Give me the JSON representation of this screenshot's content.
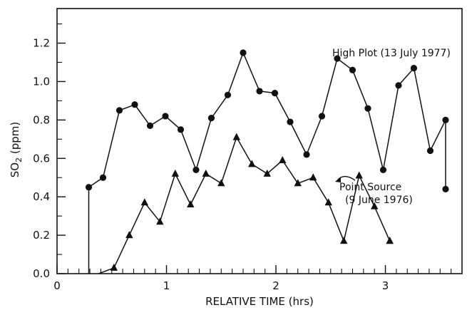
{
  "chart_data": {
    "type": "line",
    "xlabel": "RELATIVE TIME (hrs)",
    "ylabel_main": "SO",
    "ylabel_sub": "2",
    "ylabel_unit": " (ppm)",
    "xlim": [
      0,
      3.7
    ],
    "ylim": [
      0,
      1.38
    ],
    "xticks": [
      0,
      1,
      2,
      3
    ],
    "yticks": [
      0.0,
      0.2,
      0.4,
      0.6,
      0.8,
      1.0,
      1.2
    ],
    "ytick_labels": [
      "0.0",
      "0.2",
      "0.4",
      "0.6",
      "0.8",
      "1.0",
      "1.2"
    ],
    "grid": false,
    "series": [
      {
        "name": "High Plot (13 July 1977)",
        "marker": "circle",
        "x": [
          0.29,
          0.29,
          0.42,
          0.57,
          0.71,
          0.85,
          0.99,
          1.13,
          1.27,
          1.41,
          1.56,
          1.7,
          1.85,
          1.99,
          2.13,
          2.28,
          2.42,
          2.56,
          2.7,
          2.84,
          2.98,
          3.12,
          3.26,
          3.41,
          3.55,
          3.55
        ],
        "y": [
          0.0,
          0.45,
          0.5,
          0.85,
          0.88,
          0.77,
          0.82,
          0.75,
          0.54,
          0.81,
          0.93,
          1.15,
          0.95,
          0.94,
          0.79,
          0.62,
          0.82,
          1.12,
          1.06,
          0.86,
          0.54,
          0.98,
          1.07,
          0.64,
          0.8,
          0.44
        ]
      },
      {
        "name": "Point Source (9 June 1976)",
        "marker": "triangle",
        "x": [
          0.38,
          0.52,
          0.66,
          0.8,
          0.94,
          1.08,
          1.22,
          1.36,
          1.5,
          1.64,
          1.78,
          1.92,
          2.06,
          2.2,
          2.34,
          2.48,
          2.62,
          2.76,
          2.9,
          3.04,
          3.04
        ],
        "y": [
          0.0,
          0.03,
          0.2,
          0.37,
          0.27,
          0.52,
          0.36,
          0.52,
          0.47,
          0.71,
          0.57,
          0.52,
          0.59,
          0.47,
          0.5,
          0.37,
          0.17,
          0.51,
          0.35,
          0.17,
          0.17
        ]
      }
    ]
  },
  "annotations": {
    "high_plot": "High Plot (13 July 1977)",
    "point_source_line1": "Point Source",
    "point_source_line2": "(9 June 1976)"
  }
}
